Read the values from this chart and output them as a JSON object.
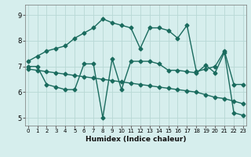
{
  "title": "",
  "xlabel": "Humidex (Indice chaleur)",
  "background_color": "#d6eeed",
  "grid_color": "#b8d8d5",
  "line_color": "#1a6b5e",
  "x_ticks": [
    0,
    1,
    2,
    3,
    4,
    5,
    6,
    7,
    8,
    9,
    10,
    11,
    12,
    13,
    14,
    15,
    16,
    17,
    18,
    19,
    20,
    21,
    22,
    23
  ],
  "y_ticks": [
    5,
    6,
    7,
    8,
    9
  ],
  "ylim": [
    4.7,
    9.4
  ],
  "xlim": [
    -0.3,
    23.3
  ],
  "line1_x": [
    0,
    1,
    2,
    3,
    4,
    5,
    6,
    7,
    8,
    9,
    10,
    11,
    12,
    13,
    14,
    15,
    16,
    17,
    18,
    19,
    20,
    21,
    22,
    23
  ],
  "line1_y": [
    7.2,
    7.4,
    7.6,
    7.7,
    7.8,
    8.1,
    8.3,
    8.5,
    8.85,
    8.7,
    8.6,
    8.5,
    7.7,
    8.5,
    8.5,
    8.4,
    8.1,
    8.6,
    6.8,
    6.9,
    7.0,
    7.6,
    6.3,
    6.3
  ],
  "line2_x": [
    0,
    1,
    2,
    3,
    4,
    5,
    6,
    7,
    8,
    9,
    10,
    11,
    12,
    13,
    14,
    15,
    16,
    17,
    18,
    19,
    20,
    21,
    22,
    23
  ],
  "line2_y": [
    7.0,
    7.0,
    6.3,
    6.2,
    6.1,
    6.1,
    7.1,
    7.1,
    5.0,
    7.3,
    6.1,
    7.2,
    7.2,
    7.2,
    7.1,
    6.85,
    6.85,
    6.8,
    6.75,
    7.05,
    6.75,
    7.55,
    5.2,
    5.1
  ],
  "line3_x": [
    0,
    1,
    2,
    3,
    4,
    5,
    6,
    7,
    8,
    9,
    10,
    11,
    12,
    13,
    14,
    15,
    16,
    17,
    18,
    19,
    20,
    21,
    22,
    23
  ],
  "line3_y": [
    6.9,
    6.85,
    6.8,
    6.75,
    6.7,
    6.65,
    6.6,
    6.55,
    6.5,
    6.45,
    6.4,
    6.35,
    6.3,
    6.25,
    6.2,
    6.15,
    6.1,
    6.05,
    6.0,
    5.9,
    5.8,
    5.75,
    5.65,
    5.55
  ],
  "markersize": 2.5,
  "linewidth": 1.0
}
